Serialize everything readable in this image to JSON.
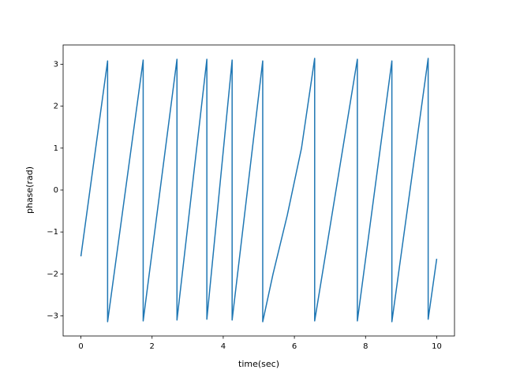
{
  "chart_data": {
    "type": "line",
    "xlabel": "time(sec)",
    "ylabel": "phase(rad)",
    "x": [
      0,
      0.75,
      0.75,
      1.75,
      1.75,
      2.7,
      2.7,
      3.54,
      3.54,
      4.25,
      4.25,
      5.11,
      5.11,
      5.4,
      5.8,
      6.2,
      6.57,
      6.57,
      7.77,
      7.77,
      8.74,
      8.74,
      9.76,
      9.76,
      10
    ],
    "values": [
      -1.58,
      3.08,
      -3.14,
      3.1,
      -3.12,
      3.12,
      -3.1,
      3.12,
      -3.08,
      3.1,
      -3.1,
      3.08,
      -3.14,
      -2.0,
      -0.6,
      1.0,
      3.14,
      -3.12,
      3.12,
      -3.12,
      3.08,
      -3.14,
      3.14,
      -3.08,
      -1.64
    ],
    "color": "#1f77b4",
    "xlim": [
      -0.5,
      10.5
    ],
    "ylim": [
      -3.48,
      3.46
    ],
    "xticks": [
      0,
      2,
      4,
      6,
      8,
      10
    ],
    "yticks": [
      {
        "value": -3,
        "label": "−3"
      },
      {
        "value": -2,
        "label": "−2"
      },
      {
        "value": -1,
        "label": "−1"
      },
      0,
      1,
      2,
      3
    ],
    "grid": false
  }
}
